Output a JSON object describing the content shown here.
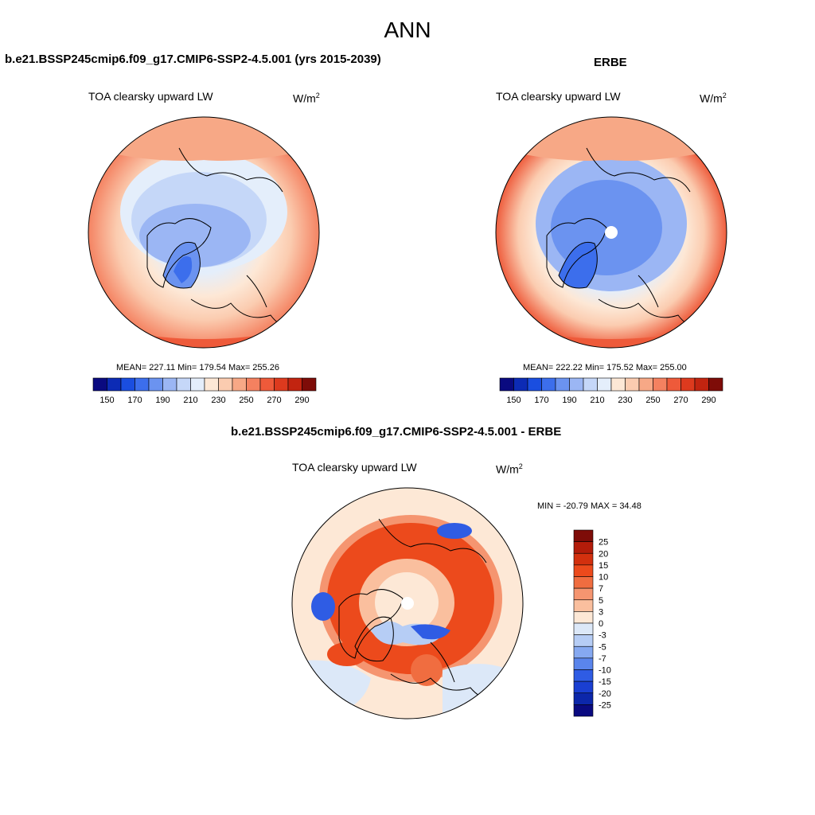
{
  "title": "ANN",
  "panels": [
    {
      "case": "b.e21.BSSP245cmip6.f09_g17.CMIP6-SSP2-4.5.001 (yrs 2015-2039)",
      "variable": "TOA clearsky upward LW",
      "units_base": "W/m",
      "units_exp": "2",
      "stats": "MEAN= 227.11  Min= 179.54  Max= 255.26",
      "mean": 227.11,
      "min": 179.54,
      "max": 255.26,
      "has_pole_hole": false
    },
    {
      "case": "ERBE",
      "variable": "TOA clearsky upward LW",
      "units_base": "W/m",
      "units_exp": "2",
      "stats": "MEAN= 222.22  Min= 175.52  Max= 255.00",
      "mean": 222.22,
      "min": 175.52,
      "max": 255.0,
      "has_pole_hole": true
    },
    {
      "case": "b.e21.BSSP245cmip6.f09_g17.CMIP6-SSP2-4.5.001 - ERBE",
      "variable": "TOA clearsky upward LW",
      "units_base": "W/m",
      "units_exp": "2",
      "stats": "MIN = -20.79 MAX =  34.48",
      "min": -20.79,
      "max": 34.48,
      "has_pole_hole": true
    }
  ],
  "colorbar_abs": {
    "orientation": "horizontal",
    "colors": [
      "#0a0a80",
      "#0c2bb5",
      "#1a4ee0",
      "#3c6eec",
      "#6b93f0",
      "#9bb6f4",
      "#c5d7f8",
      "#e4eefb",
      "#fde8d6",
      "#fbccb0",
      "#f7a886",
      "#f48160",
      "#ee5a3a",
      "#dd3a1e",
      "#c22410",
      "#7e0c08"
    ],
    "labels": [
      "150",
      "170",
      "190",
      "210",
      "230",
      "250",
      "270",
      "290"
    ]
  },
  "colorbar_diff": {
    "orientation": "vertical",
    "colors": [
      "#7e0c08",
      "#b31c0a",
      "#d3300e",
      "#ec4a1c",
      "#f06d40",
      "#f59570",
      "#fabf9e",
      "#fde8d6",
      "#dce8f8",
      "#b6cdf5",
      "#86a9f1",
      "#5a85ec",
      "#2f5ce4",
      "#1a3fd2",
      "#0c27aa",
      "#0a0a80"
    ],
    "labels": [
      "25",
      "20",
      "15",
      "10",
      "7",
      "5",
      "3",
      "0",
      "-3",
      "-5",
      "-7",
      "-10",
      "-15",
      "-20",
      "-25"
    ]
  }
}
